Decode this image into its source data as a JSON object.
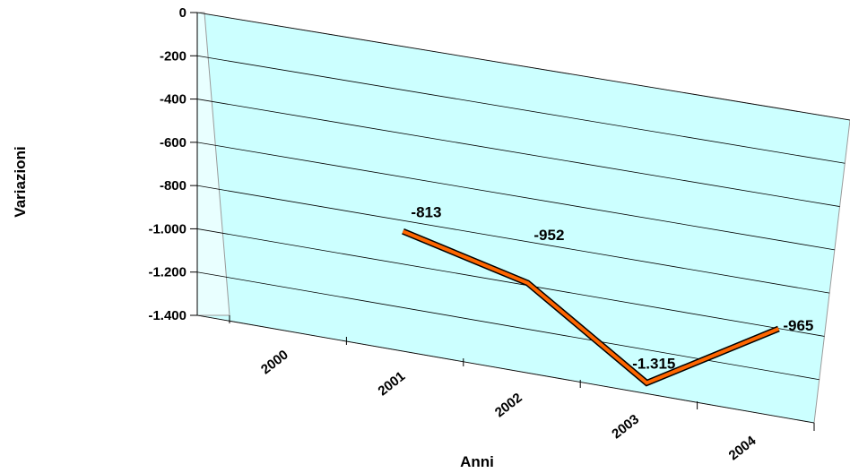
{
  "chart_data": {
    "type": "line",
    "title": "",
    "xlabel": "Anni",
    "ylabel": "Variazioni",
    "categories": [
      "2000",
      "2001",
      "2002",
      "2003",
      "2004"
    ],
    "values": [
      null,
      -813,
      -952,
      -1315,
      -965
    ],
    "data_labels": [
      "",
      "-813",
      "-952",
      "-1.315",
      "-965"
    ],
    "yticks": [
      0,
      -200,
      -400,
      -600,
      -800,
      -1000,
      -1200,
      -1400
    ],
    "ytick_labels": [
      "0",
      "-200",
      "-400",
      "-600",
      "-800",
      "-1.000",
      "-1.200",
      "-1.400"
    ],
    "ylim": [
      -1400,
      0
    ],
    "grid": true,
    "legend": "none",
    "style": "3d-line",
    "colors": {
      "wall": "#ccffff",
      "floor": "#808080",
      "line": "#ff6600",
      "line_edge": "#000000"
    }
  }
}
